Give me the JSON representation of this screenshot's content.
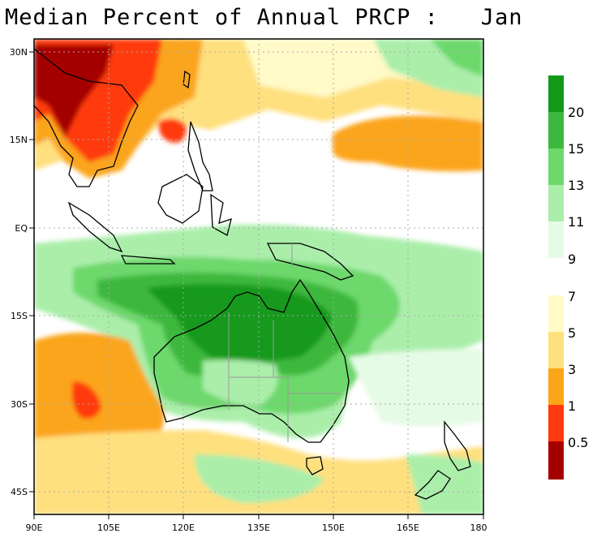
{
  "title": "Median Percent of Annual PRCP :   Jan",
  "map": {
    "lon_range": [
      90,
      180
    ],
    "lat_range": [
      -49,
      32
    ],
    "x_ticks": [
      "90E",
      "105E",
      "120E",
      "135E",
      "150E",
      "165E",
      "180"
    ],
    "y_ticks": [
      "30N",
      "15N",
      "EQ",
      "15S",
      "30S",
      "45S"
    ],
    "gridlines": true
  },
  "legend": {
    "labels": [
      "20",
      "15",
      "13",
      "11",
      "9",
      "7",
      "5",
      "3",
      "1",
      "0.5"
    ],
    "wet_colors": [
      "#13991a",
      "#3db83e",
      "#6dd86c",
      "#aaeeaa",
      "#e6fbe6"
    ],
    "dry_colors": [
      "#fffac8",
      "#ffe07e",
      "#fba51a",
      "#ff3a0f",
      "#a50000"
    ]
  }
}
